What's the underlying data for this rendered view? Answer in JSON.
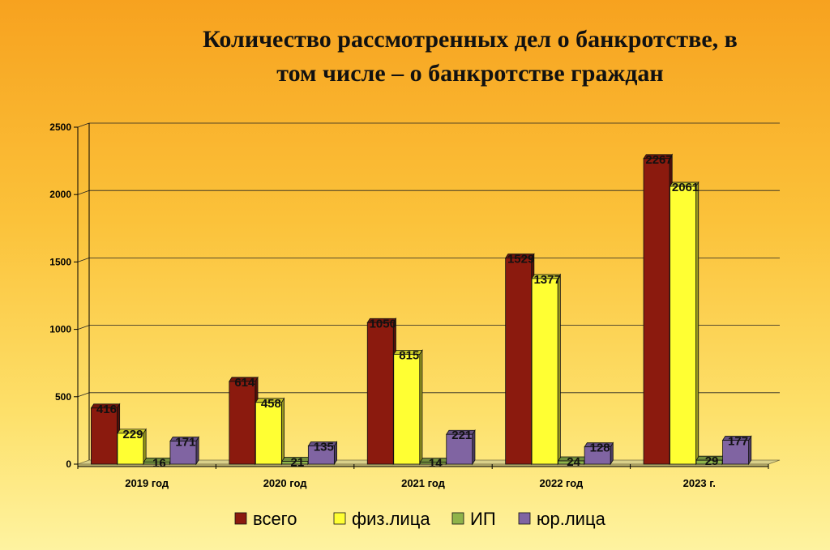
{
  "chart_data": {
    "type": "bar",
    "title": [
      "Количество рассмотренных дел о банкротстве, в",
      "том числе – о банкротстве граждан"
    ],
    "categories": [
      "2019 год",
      "2020 год",
      "2021 год",
      "2022 год",
      "2023 г."
    ],
    "series": [
      {
        "name": "всего",
        "color": "#8b1a0e",
        "values": [
          416,
          614,
          1050,
          1529,
          2267
        ]
      },
      {
        "name": "физ.лица",
        "color": "#ffff33",
        "values": [
          229,
          458,
          815,
          1377,
          2061
        ]
      },
      {
        "name": "ИП",
        "color": "#8fb34a",
        "values": [
          16,
          21,
          14,
          24,
          29
        ]
      },
      {
        "name": "юр.лица",
        "color": "#8064a2",
        "values": [
          171,
          135,
          221,
          128,
          177
        ]
      }
    ],
    "ylim": [
      0,
      2500
    ],
    "yticks": [
      0,
      500,
      1000,
      1500,
      2000,
      2500
    ],
    "grid": true,
    "legend": "bottom"
  }
}
